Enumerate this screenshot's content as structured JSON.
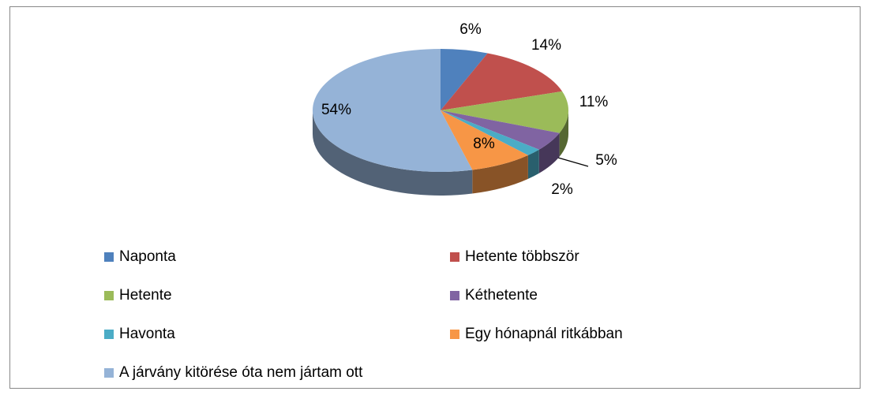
{
  "chart_data": {
    "type": "pie3d",
    "categories": [
      "Naponta",
      "Hetente többször",
      "Hetente",
      "Kéthetente",
      "Havonta",
      "Egy hónapnál ritkábban",
      "A járvány kitörése óta nem jártam ott"
    ],
    "values": [
      6,
      14,
      11,
      5,
      2,
      8,
      54
    ],
    "value_labels": [
      "6%",
      "14%",
      "11%",
      "5%",
      "2%",
      "8%",
      "54%"
    ],
    "colors": [
      "#4f81bd",
      "#c0504d",
      "#9bbb59",
      "#8064a2",
      "#4bacc6",
      "#f79646",
      "#95b3d7"
    ],
    "legend": "bottom"
  }
}
